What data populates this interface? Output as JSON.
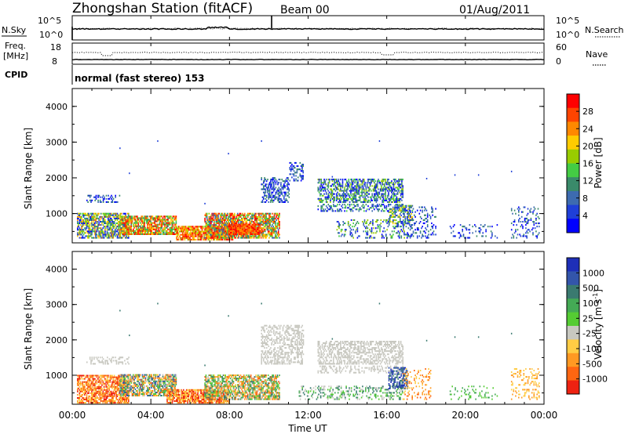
{
  "header": {
    "title": "Zhongshan Station (fitACF)",
    "beam": "Beam 00",
    "date": "01/Aug/2011"
  },
  "top_panels": {
    "nsky_label": "N.Sky",
    "nsearch_label": "N.Search",
    "nsky_ticks": [
      "10^5",
      "10^0"
    ],
    "nsearch_ticks": [
      "10^5",
      "10^0"
    ],
    "freq_label": "Freq.",
    "freq_unit": "[MHz]",
    "freq_ticks": [
      "18",
      "8"
    ],
    "nave_label": "Nave",
    "nave_ticks": [
      "60",
      "0"
    ],
    "cpid_label": "CPID",
    "cpid_text": "normal (fast stereo) 153"
  },
  "chart_data": [
    {
      "type": "heatmap",
      "name": "power",
      "ylabel": "Slant Range [km]",
      "y_ticks": [
        "4000",
        "3000",
        "2000",
        "1000"
      ],
      "colorbar_label": "Power [dB]",
      "colorbar_ticks": [
        "28",
        "24",
        "20",
        "16",
        "12",
        "8",
        "4"
      ],
      "colorbar_colors": [
        "#ff0000",
        "#ff4400",
        "#ff8800",
        "#ffcc00",
        "#99cc00",
        "#44cc44",
        "#3a8a6a",
        "#3d6bb0",
        "#1f3fd8",
        "#0000ff"
      ],
      "ylim": [
        180,
        4500
      ]
    },
    {
      "type": "heatmap",
      "name": "velocity",
      "ylabel": "Slant Range [km]",
      "y_ticks": [
        "4000",
        "3000",
        "2000",
        "1000"
      ],
      "colorbar_label": "Velocity [m s^-1]",
      "colorbar_ticks": [
        "1000",
        "500",
        "100",
        "25",
        "-25",
        "-100",
        "-500",
        "-1000"
      ],
      "colorbar_colors": [
        "#1e2fb8",
        "#3355aa",
        "#3a7a70",
        "#44aa55",
        "#55cc33",
        "#c8c8c0",
        "#ffcc44",
        "#ff9922",
        "#ff6611",
        "#ee2211"
      ],
      "ylim": [
        180,
        4500
      ]
    }
  ],
  "time_axis": {
    "ticks": [
      "00:00",
      "04:00",
      "08:00",
      "12:00",
      "16:00",
      "20:00",
      "00:00"
    ],
    "label": "Time UT"
  }
}
